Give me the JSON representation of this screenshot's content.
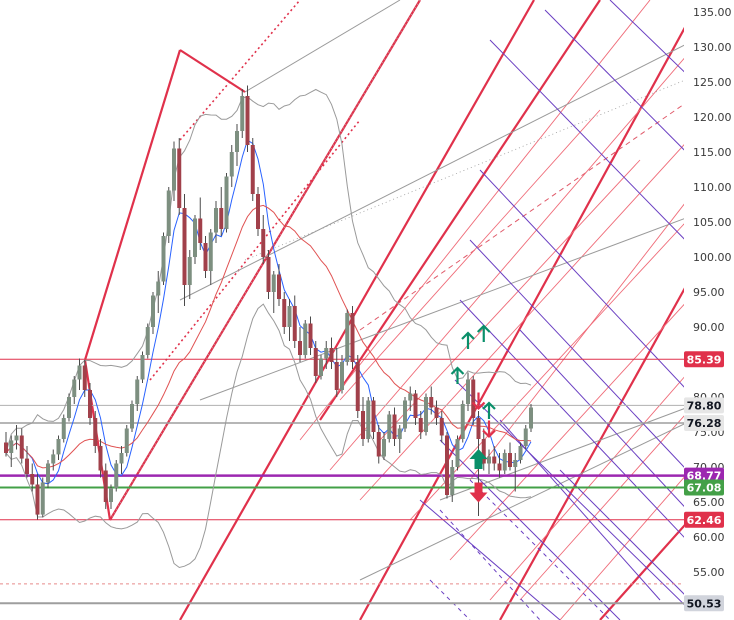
{
  "chart_data": {
    "type": "candlestick",
    "y_axis": {
      "position": "right",
      "range": [
        47,
        136
      ],
      "ticks": [
        135,
        130,
        125,
        120,
        115,
        110,
        105,
        100,
        95,
        90,
        80,
        75,
        70,
        65,
        60,
        55
      ],
      "tick_labels": [
        "135.00",
        "130.00",
        "125.00",
        "120.00",
        "115.00",
        "110.00",
        "105.00",
        "100.00",
        "95.00",
        "90.00",
        "80.00",
        "75.00",
        "70.00",
        "65.00",
        "60.00",
        "55.00"
      ]
    },
    "grid": false,
    "price_badges": [
      {
        "value": 85.39,
        "label": "85.39",
        "color": "#e0314b",
        "text_color": "#ffffff"
      },
      {
        "value": 78.8,
        "label": "78.80",
        "color": "#e6e6e6",
        "text_color": "#131722"
      },
      {
        "value": 76.28,
        "label": "76.28",
        "color": "#e6e6e6",
        "text_color": "#131722"
      },
      {
        "value": 68.77,
        "label": "68.77",
        "color": "#9c27b0",
        "text_color": "#ffffff"
      },
      {
        "value": 67.08,
        "label": "67.08",
        "color": "#43a047",
        "text_color": "#ffffff"
      },
      {
        "value": 62.46,
        "label": "62.46",
        "color": "#e0314b",
        "text_color": "#ffffff"
      },
      {
        "value": 50.53,
        "label": "50.53",
        "color": "#d1d4dc",
        "text_color": "#131722"
      }
    ],
    "horizontal_lines": [
      {
        "value": 85.39,
        "color": "#e0314b",
        "width": 1
      },
      {
        "value": 78.8,
        "color": "#b0b0b0",
        "width": 1
      },
      {
        "value": 76.28,
        "color": "#9e9e9e",
        "width": 1.5
      },
      {
        "value": 68.77,
        "color": "#9c27b0",
        "width": 2.5
      },
      {
        "value": 67.08,
        "color": "#43a047",
        "width": 2
      },
      {
        "value": 62.46,
        "color": "#e0314b",
        "width": 1
      },
      {
        "value": 53.3,
        "color": "#e88a8a",
        "width": 1,
        "dash": "3,3"
      },
      {
        "value": 50.53,
        "color": "#9e9e9e",
        "width": 2
      }
    ],
    "candles": [
      [
        73.5,
        75.0,
        71.5,
        72.0
      ],
      [
        72.0,
        74.5,
        70.0,
        73.8
      ],
      [
        73.8,
        76.0,
        72.5,
        74.5
      ],
      [
        74.5,
        75.5,
        70.5,
        71.2
      ],
      [
        71.2,
        73.0,
        68.5,
        69.0
      ],
      [
        69.0,
        70.5,
        66.5,
        67.5
      ],
      [
        67.5,
        69.0,
        62.5,
        63.2
      ],
      [
        63.2,
        68.5,
        62.8,
        67.8
      ],
      [
        67.8,
        71.0,
        67.0,
        70.5
      ],
      [
        70.5,
        72.5,
        69.5,
        71.8
      ],
      [
        71.8,
        74.5,
        71.0,
        74.0
      ],
      [
        74.0,
        77.5,
        73.5,
        77.0
      ],
      [
        77.0,
        80.5,
        76.5,
        80.0
      ],
      [
        80.0,
        83.0,
        79.0,
        82.5
      ],
      [
        82.5,
        85.5,
        81.0,
        84.5
      ],
      [
        84.5,
        85.3,
        80.0,
        81.0
      ],
      [
        81.0,
        82.0,
        76.0,
        77.0
      ],
      [
        77.0,
        78.0,
        72.0,
        73.0
      ],
      [
        73.0,
        74.0,
        68.5,
        69.5
      ],
      [
        69.5,
        70.5,
        64.0,
        65.0
      ],
      [
        65.0,
        67.5,
        64.0,
        67.0
      ],
      [
        67.0,
        71.0,
        66.5,
        70.5
      ],
      [
        70.5,
        73.0,
        69.0,
        72.0
      ],
      [
        72.0,
        76.0,
        71.5,
        75.5
      ],
      [
        75.5,
        79.5,
        75.0,
        79.0
      ],
      [
        79.0,
        83.0,
        78.0,
        82.5
      ],
      [
        82.5,
        86.5,
        82.0,
        86.0
      ],
      [
        86.0,
        90.5,
        85.5,
        90.0
      ],
      [
        90.0,
        95.0,
        89.0,
        94.5
      ],
      [
        94.5,
        98.0,
        92.0,
        96.5
      ],
      [
        96.5,
        103.5,
        96.0,
        103.0
      ],
      [
        103.0,
        110.0,
        102.0,
        109.5
      ],
      [
        109.5,
        116.5,
        108.0,
        115.5
      ],
      [
        115.5,
        117.0,
        106.0,
        107.0
      ],
      [
        107.0,
        109.0,
        93.0,
        96.0
      ],
      [
        96.0,
        101.0,
        94.0,
        100.0
      ],
      [
        100.0,
        106.0,
        99.0,
        105.5
      ],
      [
        105.5,
        108.5,
        101.0,
        102.0
      ],
      [
        102.0,
        103.0,
        97.0,
        98.0
      ],
      [
        98.0,
        104.0,
        96.0,
        103.5
      ],
      [
        103.5,
        108.0,
        102.0,
        107.0
      ],
      [
        107.0,
        110.0,
        103.0,
        104.0
      ],
      [
        104.0,
        112.0,
        103.5,
        111.5
      ],
      [
        111.5,
        116.0,
        110.0,
        115.0
      ],
      [
        115.0,
        119.0,
        113.0,
        118.0
      ],
      [
        118.0,
        124.0,
        117.0,
        123.0
      ],
      [
        123.0,
        124.5,
        115.0,
        116.0
      ],
      [
        116.0,
        117.0,
        108.0,
        109.0
      ],
      [
        109.0,
        110.0,
        103.0,
        104.0
      ],
      [
        104.0,
        106.0,
        99.0,
        100.0
      ],
      [
        100.0,
        101.0,
        94.0,
        95.0
      ],
      [
        95.0,
        98.0,
        92.0,
        97.5
      ],
      [
        97.5,
        99.0,
        93.0,
        94.0
      ],
      [
        94.0,
        95.0,
        89.0,
        90.0
      ],
      [
        90.0,
        94.0,
        88.0,
        93.0
      ],
      [
        93.0,
        94.5,
        87.0,
        88.0
      ],
      [
        88.0,
        90.0,
        85.0,
        86.0
      ],
      [
        86.0,
        91.0,
        85.5,
        90.5
      ],
      [
        90.5,
        91.5,
        86.0,
        87.0
      ],
      [
        87.0,
        88.0,
        82.0,
        83.0
      ],
      [
        83.0,
        86.0,
        82.5,
        85.5
      ],
      [
        85.5,
        88.0,
        84.0,
        87.0
      ],
      [
        87.0,
        88.5,
        84.0,
        85.0
      ],
      [
        85.0,
        87.0,
        80.0,
        81.0
      ],
      [
        81.0,
        86.0,
        80.5,
        85.0
      ],
      [
        85.0,
        92.5,
        84.5,
        92.0
      ],
      [
        92.0,
        93.0,
        84.0,
        85.0
      ],
      [
        85.0,
        86.0,
        77.0,
        78.0
      ],
      [
        78.0,
        80.0,
        73.0,
        74.0
      ],
      [
        74.0,
        80.0,
        73.5,
        79.5
      ],
      [
        79.5,
        80.0,
        74.0,
        75.0
      ],
      [
        75.0,
        76.0,
        70.5,
        71.5
      ],
      [
        71.5,
        75.0,
        71.0,
        74.0
      ],
      [
        74.0,
        78.0,
        73.5,
        77.5
      ],
      [
        77.5,
        78.5,
        73.0,
        74.0
      ],
      [
        74.0,
        76.0,
        72.0,
        75.5
      ],
      [
        75.5,
        80.0,
        75.0,
        79.5
      ],
      [
        79.5,
        81.5,
        78.0,
        80.5
      ],
      [
        80.5,
        81.0,
        76.0,
        77.0
      ],
      [
        77.0,
        78.0,
        74.0,
        75.0
      ],
      [
        75.0,
        80.5,
        74.5,
        80.0
      ],
      [
        80.0,
        81.5,
        77.5,
        78.5
      ],
      [
        78.5,
        79.5,
        76.0,
        77.0
      ],
      [
        77.0,
        78.0,
        73.5,
        74.5
      ],
      [
        74.5,
        75.0,
        65.5,
        66.0
      ],
      [
        66.0,
        71.0,
        65.0,
        70.0
      ],
      [
        70.0,
        74.5,
        69.5,
        74.0
      ],
      [
        74.0,
        79.5,
        73.5,
        79.0
      ],
      [
        79.0,
        83.5,
        78.0,
        82.5
      ],
      [
        82.5,
        83.0,
        76.0,
        77.0
      ],
      [
        77.0,
        78.0,
        63.0,
        74.0
      ],
      [
        74.0,
        75.5,
        69.5,
        70.5
      ],
      [
        70.5,
        72.5,
        69.0,
        71.5
      ],
      [
        71.5,
        73.0,
        69.5,
        70.5
      ],
      [
        70.5,
        72.0,
        68.5,
        69.5
      ],
      [
        69.5,
        72.5,
        69.0,
        72.0
      ],
      [
        72.0,
        73.5,
        69.5,
        70.0
      ],
      [
        70.0,
        72.0,
        66.5,
        71.0
      ],
      [
        71.0,
        73.5,
        70.5,
        73.0
      ],
      [
        73.0,
        76.0,
        72.5,
        75.5
      ],
      [
        75.5,
        79.0,
        75.0,
        78.5
      ]
    ],
    "candle_colors": {
      "up": "#7d8f80",
      "down": "#a1404a",
      "wick": "#4a4a4a"
    },
    "moving_averages": [
      {
        "name": "",
        "color": "#2962ff",
        "period": 5
      },
      {
        "name": "",
        "color": "#e05252",
        "period": 20
      }
    ],
    "bollinger": {
      "color": "#9a9a9a",
      "period": 20,
      "mult": 2
    },
    "signals": [
      {
        "index": 88,
        "price": 88.0,
        "direction": "up",
        "color": "#0a8f6a",
        "size": "small"
      },
      {
        "index": 91,
        "price": 89.0,
        "direction": "up",
        "color": "#0a8f6a",
        "size": "small"
      },
      {
        "index": 86,
        "price": 83.0,
        "direction": "up",
        "color": "#0a8f6a",
        "size": "small"
      },
      {
        "index": 90,
        "price": 79.5,
        "direction": "down",
        "color": "#e0314b",
        "size": "small"
      },
      {
        "index": 92,
        "price": 78.0,
        "direction": "up",
        "color": "#0a8f6a",
        "size": "small"
      },
      {
        "index": 92,
        "price": 75.5,
        "direction": "down",
        "color": "#e0314b",
        "size": "small"
      },
      {
        "index": 90,
        "price": 71.0,
        "direction": "up",
        "color": "#0a8f6a",
        "size": "big"
      },
      {
        "index": 90,
        "price": 66.5,
        "direction": "down",
        "color": "#e0314b",
        "size": "big"
      }
    ]
  }
}
